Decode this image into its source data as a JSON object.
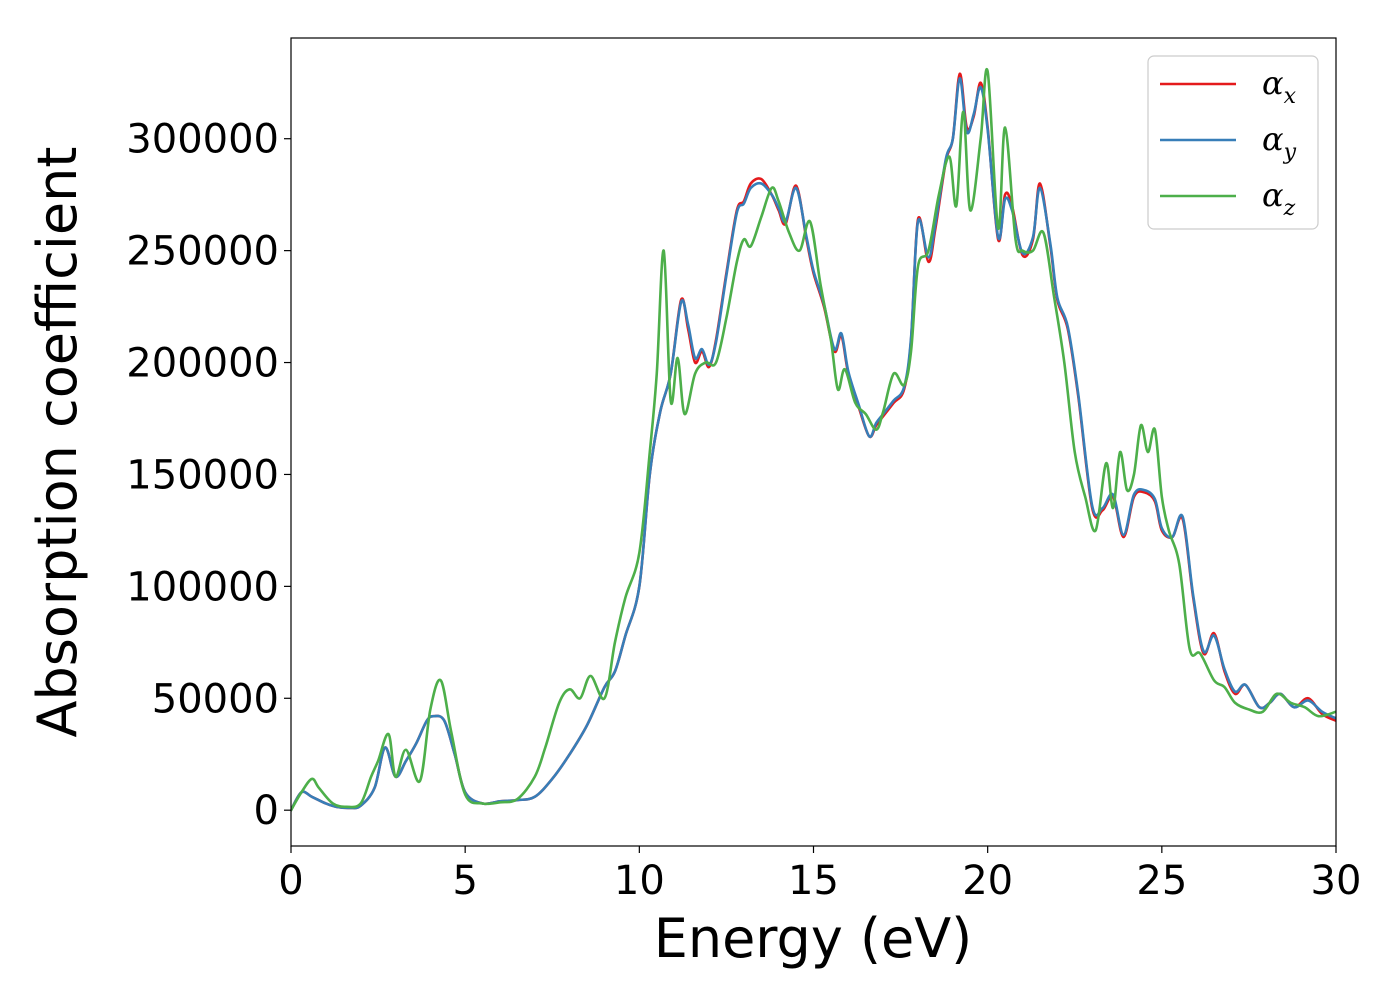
{
  "chart_data": {
    "type": "line",
    "title": "",
    "xlabel": "Energy (eV)",
    "ylabel": "Absorption coefficient",
    "xlim": [
      0,
      30
    ],
    "ylim": [
      -16000,
      345000
    ],
    "xticks": [
      0,
      5,
      10,
      15,
      20,
      25,
      30
    ],
    "yticks": [
      0,
      50000,
      100000,
      150000,
      200000,
      250000,
      300000
    ],
    "xtick_labels": [
      "0",
      "5",
      "10",
      "15",
      "20",
      "25",
      "30"
    ],
    "ytick_labels": [
      "0",
      "50000",
      "100000",
      "150000",
      "200000",
      "250000",
      "300000"
    ],
    "grid": false,
    "legend_position": "top-right",
    "series": [
      {
        "name": "αx",
        "legend_base": "α",
        "legend_sub": "x",
        "color": "#e41a1c",
        "x": [
          0,
          0.3,
          0.6,
          1.0,
          1.3,
          1.7,
          2.0,
          2.4,
          2.7,
          3.0,
          3.3,
          3.6,
          3.9,
          4.1,
          4.4,
          4.7,
          5.0,
          5.5,
          6.0,
          6.5,
          7.0,
          7.5,
          8.0,
          8.5,
          9.0,
          9.3,
          9.6,
          10.0,
          10.3,
          10.6,
          10.9,
          11.2,
          11.4,
          11.6,
          11.8,
          12.0,
          12.2,
          12.5,
          12.8,
          13.0,
          13.2,
          13.5,
          13.8,
          14.0,
          14.2,
          14.5,
          14.8,
          15.0,
          15.3,
          15.6,
          15.8,
          16.0,
          16.3,
          16.6,
          16.8,
          17.0,
          17.3,
          17.6,
          17.8,
          18.0,
          18.3,
          18.5,
          18.8,
          19.0,
          19.2,
          19.4,
          19.6,
          19.8,
          20.0,
          20.3,
          20.5,
          20.7,
          21.0,
          21.3,
          21.5,
          21.8,
          22.0,
          22.3,
          22.6,
          23.0,
          23.3,
          23.6,
          23.9,
          24.2,
          24.5,
          24.8,
          25.0,
          25.3,
          25.6,
          25.9,
          26.2,
          26.5,
          26.8,
          27.1,
          27.4,
          27.8,
          28.1,
          28.4,
          28.8,
          29.2,
          29.6,
          30.0
        ],
        "y": [
          0,
          8000,
          6000,
          3000,
          1500,
          1000,
          2000,
          10000,
          28000,
          15000,
          22000,
          30000,
          40000,
          42000,
          40000,
          25000,
          8000,
          3000,
          4000,
          4500,
          6000,
          14000,
          25000,
          38000,
          55000,
          62000,
          78000,
          100000,
          150000,
          178000,
          195000,
          228000,
          215000,
          200000,
          205000,
          198000,
          210000,
          240000,
          268000,
          272000,
          280000,
          282000,
          275000,
          268000,
          262000,
          279000,
          255000,
          240000,
          225000,
          205000,
          212000,
          195000,
          180000,
          167000,
          172000,
          176000,
          182000,
          188000,
          210000,
          264000,
          245000,
          260000,
          290000,
          300000,
          329000,
          305000,
          310000,
          325000,
          305000,
          255000,
          275000,
          270000,
          248000,
          255000,
          280000,
          252000,
          228000,
          215000,
          185000,
          135000,
          134000,
          140000,
          122000,
          140000,
          142000,
          138000,
          125000,
          122000,
          130000,
          95000,
          70000,
          79000,
          62000,
          52000,
          56000,
          46000,
          48000,
          52000,
          46000,
          50000,
          43000,
          40000
        ]
      },
      {
        "name": "αy",
        "legend_base": "α",
        "legend_sub": "y",
        "color": "#377eb8",
        "x": [
          0,
          0.3,
          0.6,
          1.0,
          1.3,
          1.7,
          2.0,
          2.4,
          2.7,
          3.0,
          3.3,
          3.6,
          3.9,
          4.1,
          4.4,
          4.7,
          5.0,
          5.5,
          6.0,
          6.5,
          7.0,
          7.5,
          8.0,
          8.5,
          9.0,
          9.3,
          9.6,
          10.0,
          10.3,
          10.6,
          10.9,
          11.2,
          11.4,
          11.6,
          11.8,
          12.0,
          12.2,
          12.5,
          12.8,
          13.0,
          13.2,
          13.5,
          13.8,
          14.0,
          14.2,
          14.5,
          14.8,
          15.0,
          15.3,
          15.6,
          15.8,
          16.0,
          16.3,
          16.6,
          16.8,
          17.0,
          17.3,
          17.6,
          17.8,
          18.0,
          18.3,
          18.5,
          18.8,
          19.0,
          19.2,
          19.4,
          19.6,
          19.8,
          20.0,
          20.3,
          20.5,
          20.7,
          21.0,
          21.3,
          21.5,
          21.8,
          22.0,
          22.3,
          22.6,
          23.0,
          23.3,
          23.6,
          23.9,
          24.2,
          24.5,
          24.8,
          25.0,
          25.3,
          25.6,
          25.9,
          26.2,
          26.5,
          26.8,
          27.1,
          27.4,
          27.8,
          28.1,
          28.4,
          28.8,
          29.2,
          29.6,
          30.0
        ],
        "y": [
          0,
          8000,
          6000,
          3000,
          1500,
          1000,
          2000,
          10000,
          28000,
          15000,
          22000,
          30000,
          40000,
          42000,
          40000,
          25000,
          8000,
          3000,
          4000,
          4500,
          6000,
          14000,
          25000,
          38000,
          55000,
          62000,
          78000,
          100000,
          150000,
          178000,
          195000,
          227000,
          217000,
          202000,
          206000,
          199000,
          209000,
          239000,
          267000,
          271000,
          278000,
          280000,
          275000,
          269000,
          263000,
          278000,
          256000,
          241000,
          226000,
          206000,
          213000,
          196000,
          181000,
          167000,
          173000,
          177000,
          183000,
          189000,
          211000,
          263000,
          247000,
          262000,
          291000,
          300000,
          327000,
          303000,
          311000,
          323000,
          304000,
          256000,
          273000,
          268000,
          249000,
          256000,
          278000,
          253000,
          229000,
          216000,
          186000,
          136000,
          135000,
          141000,
          123000,
          141000,
          143000,
          139000,
          126000,
          122000,
          131000,
          96000,
          71000,
          78000,
          63000,
          53000,
          56000,
          46000,
          48000,
          52000,
          46000,
          49000,
          44000,
          41000
        ]
      },
      {
        "name": "αz",
        "legend_base": "α",
        "legend_sub": "z",
        "color": "#4daf4a",
        "x": [
          0,
          0.3,
          0.6,
          0.8,
          1.2,
          1.6,
          2.0,
          2.3,
          2.5,
          2.8,
          3.0,
          3.3,
          3.7,
          4.0,
          4.3,
          4.6,
          5.0,
          5.5,
          6.0,
          6.5,
          7.0,
          7.3,
          7.7,
          8.0,
          8.3,
          8.6,
          9.0,
          9.3,
          9.6,
          10.0,
          10.3,
          10.5,
          10.7,
          10.9,
          11.1,
          11.3,
          11.6,
          11.9,
          12.2,
          12.5,
          12.8,
          13.0,
          13.2,
          13.5,
          13.8,
          14.0,
          14.3,
          14.6,
          14.9,
          15.2,
          15.5,
          15.7,
          15.9,
          16.2,
          16.5,
          16.8,
          17.0,
          17.3,
          17.6,
          17.8,
          18.0,
          18.3,
          18.6,
          18.9,
          19.1,
          19.3,
          19.5,
          19.8,
          20.0,
          20.3,
          20.5,
          20.8,
          21.0,
          21.3,
          21.6,
          21.9,
          22.2,
          22.5,
          22.8,
          23.1,
          23.4,
          23.6,
          23.8,
          24.0,
          24.2,
          24.4,
          24.6,
          24.8,
          25.0,
          25.2,
          25.5,
          25.8,
          26.1,
          26.5,
          26.8,
          27.1,
          27.5,
          27.9,
          28.3,
          28.7,
          29.1,
          29.5,
          30.0
        ],
        "y": [
          0,
          8000,
          14000,
          10000,
          3000,
          1500,
          3000,
          15000,
          22000,
          34000,
          15000,
          27000,
          13000,
          45000,
          58000,
          35000,
          7000,
          3000,
          3500,
          5000,
          15000,
          28000,
          48000,
          54000,
          50000,
          60000,
          50000,
          75000,
          95000,
          115000,
          160000,
          195000,
          250000,
          183000,
          202000,
          177000,
          195000,
          200000,
          200000,
          220000,
          245000,
          255000,
          252000,
          265000,
          278000,
          272000,
          258000,
          250000,
          263000,
          235000,
          210000,
          188000,
          197000,
          182000,
          177000,
          170000,
          178000,
          195000,
          190000,
          205000,
          243000,
          250000,
          275000,
          292000,
          270000,
          312000,
          268000,
          300000,
          330000,
          260000,
          305000,
          255000,
          250000,
          250000,
          258000,
          230000,
          200000,
          160000,
          140000,
          125000,
          155000,
          135000,
          160000,
          143000,
          150000,
          172000,
          160000,
          170000,
          140000,
          125000,
          110000,
          72000,
          70000,
          58000,
          55000,
          48000,
          45000,
          44000,
          52000,
          48000,
          46000,
          42000,
          44000
        ]
      }
    ]
  }
}
